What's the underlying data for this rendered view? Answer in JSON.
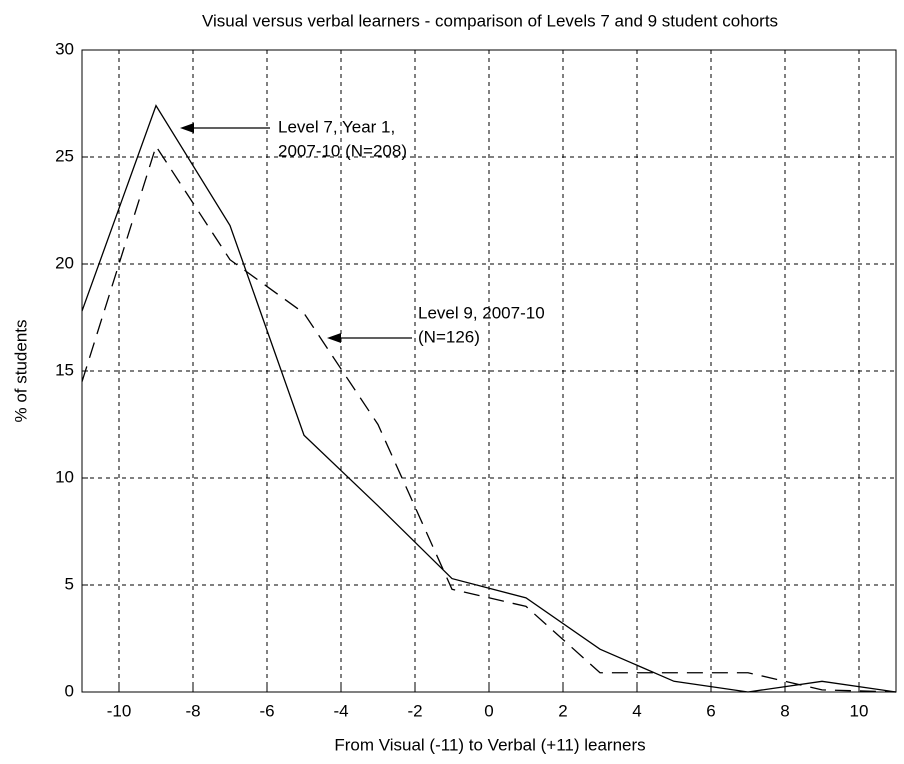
{
  "chart_data": {
    "type": "line",
    "title": "Visual versus verbal learners - comparison of Levels 7 and 9 student cohorts",
    "x_label": "From Visual (-11) to Verbal (+11) learners",
    "y_label": "% of students",
    "x": [
      -11,
      -9,
      -7,
      -5,
      -3,
      -1,
      1,
      3,
      5,
      7,
      9,
      11
    ],
    "series": [
      {
        "color": "#000000",
        "dash": "solid",
        "values": [
          17.8,
          27.4,
          21.8,
          12,
          8.7,
          5.3,
          4.4,
          2,
          0.5,
          0,
          0.5,
          0
        ]
      },
      {
        "color": "#000000",
        "dash": "dashed",
        "values": [
          14.5,
          25.5,
          20.2,
          17.7,
          12.5,
          4.8,
          4,
          0.9,
          0.9,
          0.9,
          0.1,
          0
        ]
      }
    ],
    "xlim": [
      -11,
      11
    ],
    "xticks": [
      -10,
      -8,
      -6,
      -4,
      -2,
      0,
      2,
      4,
      6,
      8,
      10
    ],
    "ylim": [
      0,
      30
    ],
    "yticks": [
      0,
      5,
      10,
      15,
      20,
      25,
      30
    ],
    "grid": true,
    "annotations": [
      {
        "lines": [
          "Level 7, Year 1,",
          "2007-10 (N=208)"
        ]
      },
      {
        "lines": [
          "Level 9, 2007-10",
          "(N=126)"
        ]
      }
    ]
  }
}
